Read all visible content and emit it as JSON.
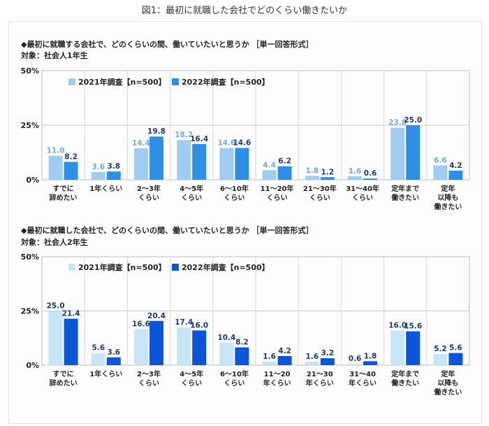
{
  "figure_title": "図1：最初に就職した会社でどのくらい働きたいか",
  "chart_data": [
    {
      "type": "bar",
      "title": "◆最初に就職する会社で、どのくらいの間、働いていたいと思うか ［単一回答形式］",
      "subtitle": "対象：社会人1年生",
      "y_ticks": [
        "50%",
        "25%",
        "0%"
      ],
      "ylim": [
        0,
        50
      ],
      "legend_position": "top-left",
      "categories": [
        [
          "すでに",
          "辞めたい"
        ],
        [
          "1年くらい"
        ],
        [
          "2～3年",
          "くらい"
        ],
        [
          "4～5年",
          "くらい"
        ],
        [
          "6～10年",
          "くらい"
        ],
        [
          "11～20年",
          "くらい"
        ],
        [
          "21～30年",
          "くらい"
        ],
        [
          "31～40年",
          "くらい"
        ],
        [
          "定年まで",
          "働きたい"
        ],
        [
          "定年",
          "以降も",
          "働きたい"
        ]
      ],
      "series": [
        {
          "name": "2021年調査【n=500】",
          "color": "#9fcdf2",
          "label_color": "#6aaee8",
          "values": [
            11.0,
            3.6,
            14.4,
            18.2,
            14.6,
            4.4,
            1.8,
            1.6,
            23.8,
            6.6
          ],
          "labels": [
            "11.0",
            "3.6",
            "14.4",
            "18.2",
            "14.6",
            "4.4",
            "1.8",
            "1.6",
            "23.8",
            "6.6"
          ]
        },
        {
          "name": "2022年調査【n=500】",
          "color": "#2f8fe6",
          "label_color": "#1c3a72",
          "values": [
            8.2,
            3.8,
            19.8,
            16.4,
            14.6,
            6.2,
            1.2,
            0.6,
            25.0,
            4.2
          ],
          "labels": [
            "8.2",
            "3.8",
            "19.8",
            "16.4",
            "14.6",
            "6.2",
            "1.2",
            "0.6",
            "25.0",
            "4.2"
          ]
        }
      ]
    },
    {
      "type": "bar",
      "title": "◆最初に就職した会社で、どのくらいの間、働いていたいと思うか ［単一回答形式］",
      "subtitle": "対象：社会人2年生",
      "y_ticks": [
        "50%",
        "25%",
        "0%"
      ],
      "ylim": [
        0,
        50
      ],
      "legend_position": "top-left",
      "categories": [
        [
          "すでに",
          "辞めたい"
        ],
        [
          "1年くらい"
        ],
        [
          "2～3年",
          "くらい"
        ],
        [
          "4～5年",
          "くらい"
        ],
        [
          "6～10年",
          "くらい"
        ],
        [
          "11～20",
          "年くらい"
        ],
        [
          "21～30",
          "年くらい"
        ],
        [
          "31～40",
          "年くらい"
        ],
        [
          "定年まで",
          "働きたい"
        ],
        [
          "定年",
          "以降も",
          "働きたい"
        ]
      ],
      "series": [
        {
          "name": "2021年調査【n=500】",
          "color": "#c6e6f8",
          "label_color": "#1c3a72",
          "values": [
            25.0,
            5.6,
            16.6,
            17.4,
            10.4,
            1.6,
            1.6,
            0.6,
            16.0,
            5.2
          ],
          "labels": [
            "25.0",
            "5.6",
            "16.6",
            "17.4",
            "10.4",
            "1.6",
            "1.6",
            "0.6",
            "16.0",
            "5.2"
          ]
        },
        {
          "name": "2022年調査【n=500】",
          "color": "#0a55d8",
          "label_color": "#1c3a72",
          "values": [
            21.4,
            3.6,
            20.4,
            16.0,
            8.2,
            4.2,
            3.2,
            1.8,
            15.6,
            5.6
          ],
          "labels": [
            "21.4",
            "3.6",
            "20.4",
            "16.0",
            "8.2",
            "4.2",
            "3.2",
            "1.8",
            "15.6",
            "5.6"
          ]
        }
      ]
    }
  ]
}
